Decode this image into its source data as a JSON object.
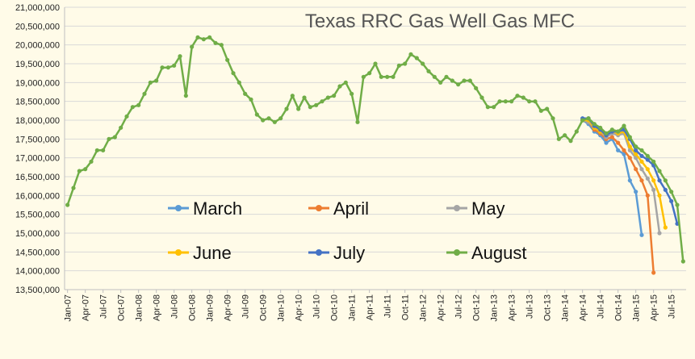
{
  "chart_data": {
    "type": "line",
    "title": "Texas RRC Gas Well Gas MFC",
    "xlabel": "",
    "ylabel": "",
    "ylim": [
      13500000,
      21000000
    ],
    "y_ticks": [
      "13,500,000",
      "14,000,000",
      "14,500,000",
      "15,000,000",
      "15,500,000",
      "16,000,000",
      "16,500,000",
      "17,000,000",
      "17,500,000",
      "18,000,000",
      "18,500,000",
      "19,000,000",
      "19,500,000",
      "20,000,000",
      "20,500,000",
      "21,000,000"
    ],
    "x_tick_labels": [
      "Jan-07",
      "Apr-07",
      "Jul-07",
      "Oct-07",
      "Jan-08",
      "Apr-08",
      "Jul-08",
      "Oct-08",
      "Jan-09",
      "Apr-09",
      "Jul-09",
      "Oct-09",
      "Jan-10",
      "Apr-10",
      "Jul-10",
      "Oct-10",
      "Jan-11",
      "Apr-11",
      "Jul-11",
      "Oct-11",
      "Jan-12",
      "Apr-12",
      "Jul-12",
      "Oct-12",
      "Jan-13",
      "Apr-13",
      "Jul-13",
      "Oct-13",
      "Jan-14",
      "Apr-14",
      "Jul-14",
      "Oct-14",
      "Jan-15",
      "Apr-15",
      "Jul-15"
    ],
    "grid": true,
    "legend_position": "inside-center",
    "common_history": [
      15750000,
      16200000,
      16650000,
      16700000,
      16900000,
      17200000,
      17200000,
      17500000,
      17550000,
      17800000,
      18100000,
      18350000,
      18400000,
      18700000,
      19000000,
      19050000,
      19400000,
      19400000,
      19450000,
      19700000,
      18650000,
      19950000,
      20200000,
      20150000,
      20200000,
      20050000,
      20000000,
      19600000,
      19250000,
      19000000,
      18700000,
      18550000,
      18150000,
      18000000,
      18050000,
      17950000,
      18050000,
      18300000,
      18650000,
      18300000,
      18600000,
      18350000,
      18400000,
      18500000,
      18600000,
      18650000,
      18900000,
      19000000,
      18700000,
      17950000,
      19150000,
      19250000,
      19500000,
      19150000,
      19150000,
      19150000,
      19450000,
      19500000,
      19750000,
      19650000,
      19500000,
      19300000,
      19150000,
      19000000,
      19150000,
      19050000,
      18950000,
      19050000,
      19050000,
      18850000,
      18600000,
      18350000,
      18350000,
      18500000,
      18500000,
      18500000,
      18650000,
      18600000,
      18500000,
      18500000,
      18250000,
      18300000,
      18050000,
      17500000,
      17600000,
      17450000,
      17700000,
      18000000
    ],
    "history_start": "Jan-07",
    "branch_start": "May-14",
    "series": [
      {
        "name": "March",
        "color": "#5b9bd5",
        "values": [
          18000000,
          17900000,
          17700000,
          17600000,
          17400000,
          17500000,
          17200000,
          17100000,
          16400000,
          16100000,
          14950000
        ]
      },
      {
        "name": "April",
        "color": "#ed7d31",
        "values": [
          18000000,
          17950000,
          17750000,
          17650000,
          17500000,
          17550000,
          17400000,
          17200000,
          17000000,
          16700000,
          16400000,
          16000000,
          13950000
        ]
      },
      {
        "name": "May",
        "color": "#a5a5a5",
        "values": [
          18000000,
          17950000,
          17800000,
          17700000,
          17550000,
          17650000,
          17600000,
          17650000,
          17200000,
          17000000,
          16700000,
          16450000,
          16150000,
          15000000
        ]
      },
      {
        "name": "June",
        "color": "#ffc000",
        "values": [
          18000000,
          18000000,
          17800000,
          17700000,
          17600000,
          17700000,
          17650000,
          17700000,
          17300000,
          17100000,
          16900000,
          16700000,
          16400000,
          16000000,
          15150000
        ]
      },
      {
        "name": "July",
        "color": "#4472c4",
        "values": [
          18050000,
          18050000,
          17850000,
          17750000,
          17600000,
          17700000,
          17700000,
          17750000,
          17500000,
          17200000,
          17050000,
          16950000,
          16800000,
          16400000,
          16150000,
          15850000,
          15250000
        ]
      },
      {
        "name": "August",
        "color": "#70ad47",
        "values": [
          18100000,
          18050000,
          17900000,
          17800000,
          17650000,
          17750000,
          17700000,
          17850000,
          17550000,
          17300000,
          17200000,
          17050000,
          16900000,
          16650000,
          16400000,
          16100000,
          15750000,
          14250000
        ]
      }
    ],
    "legend": [
      "March",
      "April",
      "May",
      "June",
      "July",
      "August"
    ]
  }
}
